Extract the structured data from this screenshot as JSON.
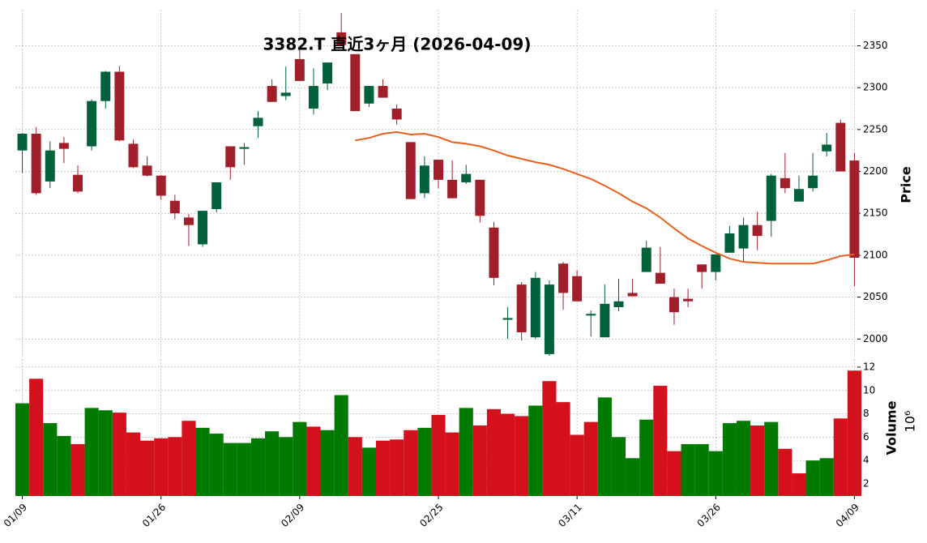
{
  "chart_data": {
    "type": "candlestick",
    "title": "3382.T 直近3ヶ月 (2026-04-09)",
    "categories": [
      "01/09",
      null,
      null,
      null,
      null,
      null,
      null,
      null,
      null,
      null,
      "01/26",
      null,
      null,
      null,
      null,
      null,
      null,
      null,
      null,
      null,
      "02/09",
      null,
      null,
      null,
      null,
      null,
      null,
      null,
      null,
      null,
      "02/25",
      null,
      null,
      null,
      null,
      null,
      null,
      null,
      null,
      null,
      "03/11",
      null,
      null,
      null,
      null,
      null,
      null,
      null,
      null,
      null,
      "03/26",
      null,
      null,
      null,
      null,
      null,
      null,
      null,
      null,
      null,
      "04/09"
    ],
    "open": [
      2225,
      2245,
      2188,
      2234,
      2196,
      2230,
      2284,
      2319,
      2233,
      2207,
      2195,
      2165,
      2145,
      2113,
      2155,
      2230,
      2227,
      2254,
      2302,
      2290,
      2334,
      2275,
      2305,
      2366,
      2340,
      2281,
      2302,
      2275,
      2235,
      2174,
      2214,
      2190,
      2187,
      2190,
      2133,
      2023,
      2065,
      2002,
      1982,
      2090,
      2075,
      2028,
      2002,
      2038,
      2055,
      2080,
      2079,
      2050,
      2048,
      2089,
      2080,
      2103,
      2108,
      2136,
      2141,
      2192,
      2164,
      2180,
      2224,
      2258,
      2213
    ],
    "high": [
      2246,
      2253,
      2236,
      2241,
      2207,
      2286,
      2320,
      2326,
      2238,
      2218,
      2196,
      2172,
      2149,
      2153,
      2187,
      2230,
      2234,
      2272,
      2310,
      2325,
      2345,
      2323,
      2330,
      2389,
      2340,
      2302,
      2310,
      2280,
      2235,
      2218,
      2214,
      2213,
      2208,
      2190,
      2140,
      2038,
      2068,
      2080,
      2070,
      2092,
      2082,
      2034,
      2065,
      2072,
      2072,
      2117,
      2110,
      2060,
      2060,
      2089,
      2101,
      2135,
      2145,
      2152,
      2197,
      2222,
      2195,
      2222,
      2246,
      2262,
      2222
    ],
    "low": [
      2198,
      2172,
      2180,
      2210,
      2174,
      2225,
      2275,
      2236,
      2204,
      2194,
      2166,
      2143,
      2111,
      2110,
      2151,
      2190,
      2208,
      2240,
      2283,
      2285,
      2308,
      2268,
      2297,
      2351,
      2272,
      2277,
      2288,
      2256,
      2167,
      2168,
      2180,
      2168,
      2185,
      2139,
      2064,
      2000,
      1998,
      2000,
      1980,
      2035,
      2045,
      2003,
      2002,
      2033,
      2051,
      2080,
      2066,
      2017,
      2038,
      2060,
      2070,
      2103,
      2093,
      2106,
      2122,
      2174,
      2164,
      2176,
      2218,
      2200,
      2063
    ],
    "close": [
      2245,
      2174,
      2225,
      2227,
      2176,
      2284,
      2319,
      2237,
      2205,
      2195,
      2171,
      2150,
      2136,
      2153,
      2187,
      2205,
      2229,
      2264,
      2283,
      2294,
      2308,
      2302,
      2330,
      2351,
      2272,
      2302,
      2288,
      2262,
      2167,
      2207,
      2190,
      2168,
      2197,
      2147,
      2073,
      2025,
      2008,
      2073,
      2065,
      2055,
      2045,
      2030,
      2042,
      2045,
      2051,
      2109,
      2066,
      2032,
      2045,
      2080,
      2101,
      2126,
      2136,
      2123,
      2195,
      2180,
      2179,
      2195,
      2232,
      2200,
      2097
    ],
    "up_color": "#00613a",
    "down_color": "#a01f2a",
    "ma": {
      "color": "#e8601c",
      "values": [
        null,
        null,
        null,
        null,
        null,
        null,
        null,
        null,
        null,
        null,
        null,
        null,
        null,
        null,
        null,
        null,
        null,
        null,
        null,
        null,
        null,
        null,
        null,
        null,
        2237,
        2240,
        2245,
        2247,
        2244,
        2245,
        2241,
        2235,
        2233,
        2230,
        2225,
        2219,
        2215,
        2211,
        2208,
        2203,
        2197,
        2191,
        2183,
        2174,
        2164,
        2156,
        2145,
        2132,
        2120,
        2111,
        2103,
        2096,
        2092,
        2091,
        2090,
        2090,
        2090,
        2090,
        2094,
        2099,
        2101
      ]
    },
    "ylabel": "Price",
    "ylim": [
      1979,
      2393
    ],
    "yticks": [
      2000,
      2050,
      2100,
      2150,
      2200,
      2250,
      2300,
      2350
    ],
    "grid": true,
    "volume": {
      "ylabel": "Volume",
      "multiplier": "10⁶",
      "up_color": "#007a00",
      "down_color": "#d4101c",
      "values": [
        8.9,
        11.0,
        7.2,
        6.1,
        5.4,
        8.5,
        8.3,
        8.1,
        6.4,
        5.7,
        5.9,
        6.0,
        7.4,
        6.8,
        6.3,
        5.5,
        5.5,
        5.9,
        6.5,
        6.0,
        7.3,
        6.9,
        6.6,
        9.6,
        6.0,
        5.1,
        5.7,
        5.8,
        6.6,
        6.8,
        7.9,
        6.4,
        8.5,
        7.0,
        8.4,
        8.0,
        7.8,
        8.7,
        10.8,
        9.0,
        6.2,
        7.3,
        9.4,
        6.0,
        4.2,
        7.5,
        10.4,
        4.8,
        5.4,
        5.4,
        4.8,
        7.2,
        7.4,
        7.0,
        7.3,
        5.0,
        2.9,
        4.0,
        4.2,
        7.6,
        11.7
      ],
      "ylim": [
        0.96,
        12.69
      ],
      "yticks": [
        2,
        4,
        6,
        8,
        10,
        12
      ]
    }
  }
}
